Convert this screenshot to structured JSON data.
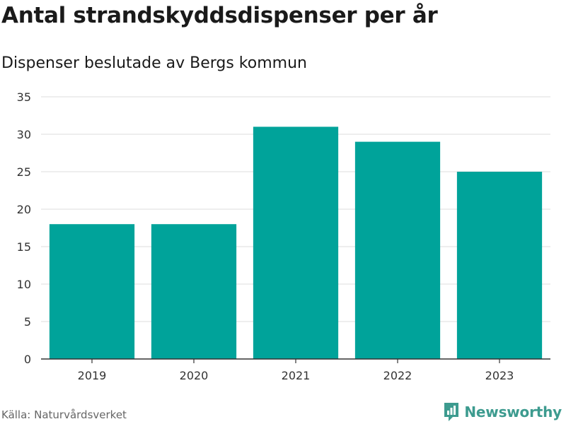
{
  "chart_data": {
    "type": "bar",
    "title": "Antal strandskyddsdispenser per år",
    "subtitle": "Dispenser beslutade av Bergs kommun",
    "xlabel": "",
    "ylabel": "",
    "categories": [
      "2019",
      "2020",
      "2021",
      "2022",
      "2023"
    ],
    "values": [
      18,
      18,
      31,
      29,
      25
    ],
    "ylim": [
      0,
      35
    ],
    "yticks": [
      0,
      5,
      10,
      15,
      20,
      25,
      30,
      35
    ],
    "grid": true,
    "bar_color": "#00a39a"
  },
  "footer": {
    "source": "Källa: Naturvårdsverket",
    "brand": "Newsworthy",
    "brand_icon": "newsworthy-logo-icon",
    "brand_color": "#3d9b8f"
  }
}
